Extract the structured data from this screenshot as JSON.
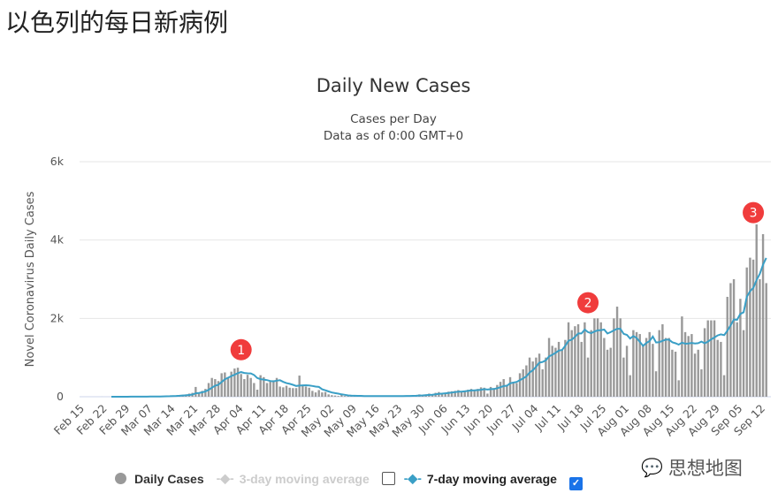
{
  "page_title": "以色列的每日新病例",
  "watermark": "思想地图",
  "chart_data": {
    "type": "bar",
    "title": "Daily New Cases",
    "subtitle": [
      "Cases per Day",
      "Data as of 0:00 GMT+0"
    ],
    "ylabel": "Novel Coronavirus Daily Cases",
    "ylim": [
      0,
      6000
    ],
    "yticks": [
      0,
      2000,
      4000,
      6000
    ],
    "ytick_labels": [
      "0",
      "2k",
      "4k",
      "6k"
    ],
    "grid": true,
    "x_start": "Feb 15",
    "xtick_labels": [
      "Feb 15",
      "Feb 22",
      "Feb 29",
      "Mar 07",
      "Mar 14",
      "Mar 21",
      "Mar 28",
      "Apr 04",
      "Apr 11",
      "Apr 18",
      "Apr 25",
      "May 02",
      "May 09",
      "May 16",
      "May 23",
      "May 30",
      "Jun 06",
      "Jun 13",
      "Jun 20",
      "Jun 27",
      "Jul 04",
      "Jul 11",
      "Jul 18",
      "Jul 25",
      "Aug 01",
      "Aug 08",
      "Aug 15",
      "Aug 22",
      "Aug 29",
      "Sep 05",
      "Sep 12"
    ],
    "series": [
      {
        "name": "Daily Cases",
        "color": "#999999",
        "kind": "bar",
        "values": [
          0,
          0,
          0,
          0,
          0,
          0,
          1,
          0,
          0,
          1,
          2,
          0,
          1,
          2,
          1,
          3,
          2,
          5,
          3,
          4,
          5,
          6,
          8,
          10,
          12,
          15,
          20,
          25,
          30,
          35,
          40,
          50,
          60,
          80,
          100,
          250,
          100,
          150,
          200,
          350,
          480,
          450,
          400,
          600,
          620,
          500,
          640,
          720,
          740,
          580,
          450,
          560,
          480,
          350,
          180,
          550,
          500,
          350,
          400,
          420,
          480,
          260,
          240,
          280,
          230,
          220,
          220,
          540,
          300,
          260,
          230,
          150,
          110,
          170,
          110,
          120,
          60,
          40,
          30,
          20,
          50,
          20,
          15,
          20,
          15,
          20,
          15,
          10,
          20,
          15,
          20,
          10,
          15,
          20,
          10,
          20,
          15,
          20,
          25,
          15,
          30,
          20,
          30,
          40,
          60,
          40,
          60,
          80,
          60,
          100,
          120,
          100,
          90,
          130,
          140,
          150,
          170,
          120,
          160,
          180,
          200,
          150,
          200,
          240,
          230,
          80,
          250,
          220,
          300,
          380,
          450,
          300,
          500,
          380,
          350,
          600,
          700,
          800,
          1000,
          900,
          1000,
          1100,
          700,
          1000,
          1500,
          1300,
          1250,
          1400,
          1200,
          1450,
          1900,
          1700,
          1800,
          1850,
          1400,
          1900,
          1000,
          1700,
          2000,
          2000,
          1900,
          1500,
          1200,
          1250,
          2000,
          2300,
          2000,
          1000,
          1300,
          550,
          1700,
          1650,
          1600,
          1300,
          1500,
          1650,
          1350,
          650,
          1700,
          1850,
          1500,
          1500,
          1200,
          1150,
          420,
          2050,
          1650,
          1550,
          1600,
          1100,
          1200,
          700,
          1750,
          1950,
          1950,
          1950,
          1450,
          1400,
          550,
          2550,
          2900,
          3000,
          1900,
          2500,
          1700,
          3300,
          3550,
          3500,
          4400,
          3000,
          4150,
          2900
        ]
      },
      {
        "name": "3-day moving average",
        "color": "#cccccc",
        "kind": "line",
        "visible": false
      },
      {
        "name": "7-day moving average",
        "color": "#3a9fc6",
        "kind": "line",
        "visible": true
      }
    ],
    "annotations": [
      {
        "label": "1",
        "date": "Apr 04",
        "value": 1200
      },
      {
        "label": "2",
        "date": "Jul 20",
        "value": 2400
      },
      {
        "label": "3",
        "date": "Sep 09",
        "value": 4700
      }
    ],
    "annotation_color": "#f03c3c",
    "legend_position": "bottom"
  },
  "legend": {
    "daily": "Daily Cases",
    "avg3": "3-day moving average",
    "avg7": "7-day moving average",
    "avg3_checked": false,
    "avg7_checked": true
  }
}
